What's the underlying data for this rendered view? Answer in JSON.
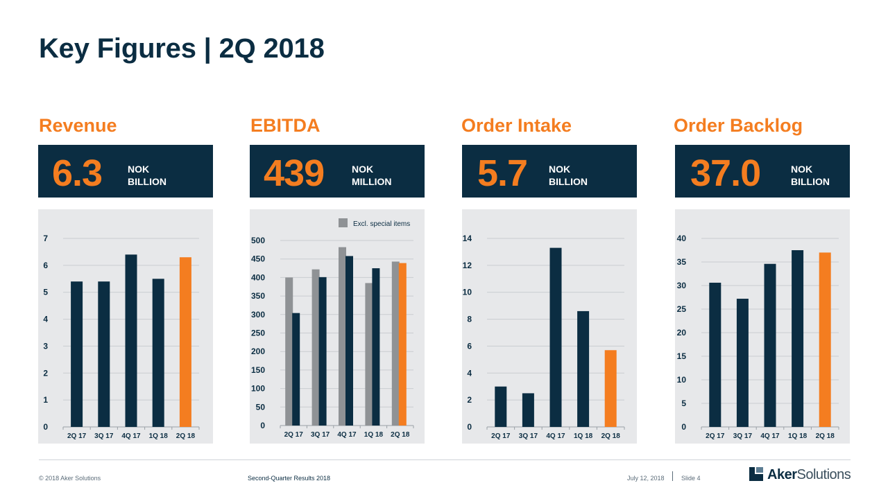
{
  "title": "Key Figures | 2Q 2018",
  "colors": {
    "navy": "#0b2d42",
    "orange": "#f47d20",
    "grey": "#8f9295",
    "panel_bg": "#e7e8ea"
  },
  "panels": [
    {
      "heading": "Revenue",
      "value": "6.3",
      "unit_line1": "NOK",
      "unit_line2": "BILLION"
    },
    {
      "heading": "EBITDA",
      "value": "439",
      "unit_line1": "NOK",
      "unit_line2": "MILLION"
    },
    {
      "heading": "Order Intake",
      "value": "5.7",
      "unit_line1": "NOK",
      "unit_line2": "BILLION"
    },
    {
      "heading": "Order Backlog",
      "value": "37.0",
      "unit_line1": "NOK",
      "unit_line2": "BILLION"
    }
  ],
  "chart_data": [
    {
      "type": "bar",
      "categories": [
        "2Q 17",
        "3Q 17",
        "4Q 17",
        "1Q 18",
        "2Q 18"
      ],
      "series": [
        {
          "values": [
            5.4,
            5.4,
            6.4,
            5.5,
            6.3
          ]
        }
      ],
      "highlight_last": true,
      "ylim": [
        0,
        7
      ],
      "yticks": [
        0,
        1,
        2,
        3,
        4,
        5,
        6,
        7
      ],
      "grid": true
    },
    {
      "type": "bar",
      "categories": [
        "2Q 17",
        "3Q 17",
        "4Q 17",
        "1Q 18",
        "2Q 18"
      ],
      "series": [
        {
          "name": "Excl. special items",
          "values": [
            400,
            422,
            482,
            385,
            443
          ]
        },
        {
          "values": [
            304,
            401,
            458,
            425,
            439
          ]
        }
      ],
      "highlight_last": true,
      "ylim": [
        0,
        500
      ],
      "yticks": [
        0,
        50,
        100,
        150,
        200,
        250,
        300,
        350,
        400,
        450,
        500
      ],
      "legend": "top-right",
      "grid": true
    },
    {
      "type": "bar",
      "categories": [
        "2Q 17",
        "3Q 17",
        "4Q 17",
        "1Q 18",
        "2Q 18"
      ],
      "series": [
        {
          "values": [
            3.0,
            2.5,
            13.3,
            8.6,
            5.7
          ]
        }
      ],
      "highlight_last": true,
      "ylim": [
        0,
        14
      ],
      "yticks": [
        0,
        2,
        4,
        6,
        8,
        10,
        12,
        14
      ],
      "grid": true
    },
    {
      "type": "bar",
      "categories": [
        "2Q 17",
        "3Q 17",
        "4Q 17",
        "1Q 18",
        "2Q 18"
      ],
      "series": [
        {
          "values": [
            30.6,
            27.2,
            34.6,
            37.5,
            37.0
          ]
        }
      ],
      "highlight_last": true,
      "ylim": [
        0,
        40
      ],
      "yticks": [
        0,
        5,
        10,
        15,
        20,
        25,
        30,
        35,
        40
      ],
      "grid": true
    }
  ],
  "footer": {
    "copyright": "© 2018 Aker Solutions",
    "center": "Second-Quarter Results 2018",
    "date": "July 12, 2018",
    "slide": "Slide 4"
  },
  "logo": {
    "part1": "Aker",
    "part2": "Solutions",
    "icon": "aker-logo-icon"
  }
}
